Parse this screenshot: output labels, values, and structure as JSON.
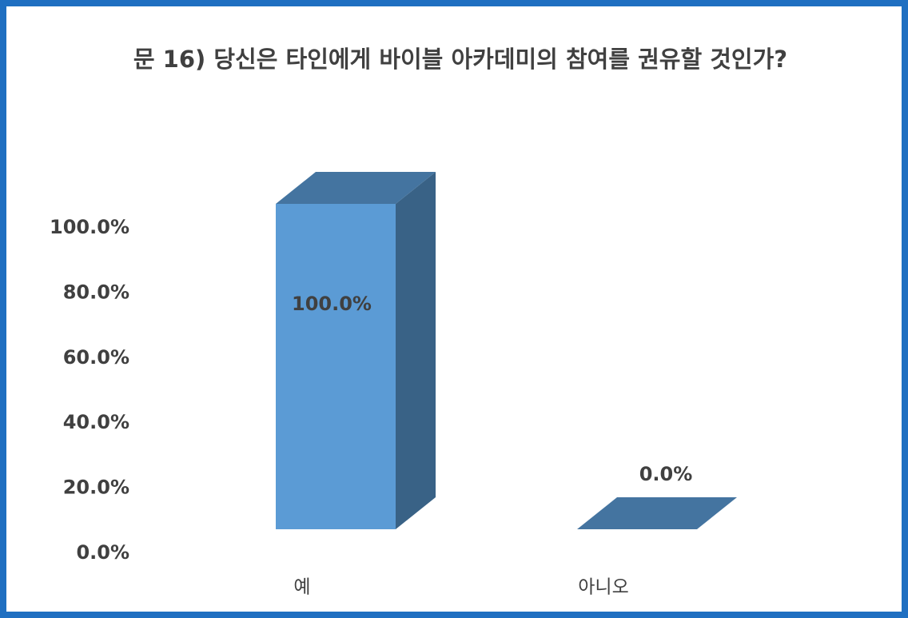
{
  "chart_data": {
    "type": "bar3d",
    "title": "문 16) 당신은 타인에게 바이블 아카데미의 참여를 권유할 것인가?",
    "categories": [
      "예",
      "아니오"
    ],
    "values": [
      100,
      0
    ],
    "value_labels": [
      "100.0%",
      "0.0%"
    ],
    "color": "#5b9bd5",
    "ylim": [
      0,
      100
    ],
    "yticks": [
      {
        "value": 0,
        "label": "0.0%"
      },
      {
        "value": 20,
        "label": "20.0%"
      },
      {
        "value": 40,
        "label": "40.0%"
      },
      {
        "value": 60,
        "label": "60.0%"
      },
      {
        "value": 80,
        "label": "80.0%"
      },
      {
        "value": 100,
        "label": "100.0%"
      }
    ],
    "grid": false
  }
}
